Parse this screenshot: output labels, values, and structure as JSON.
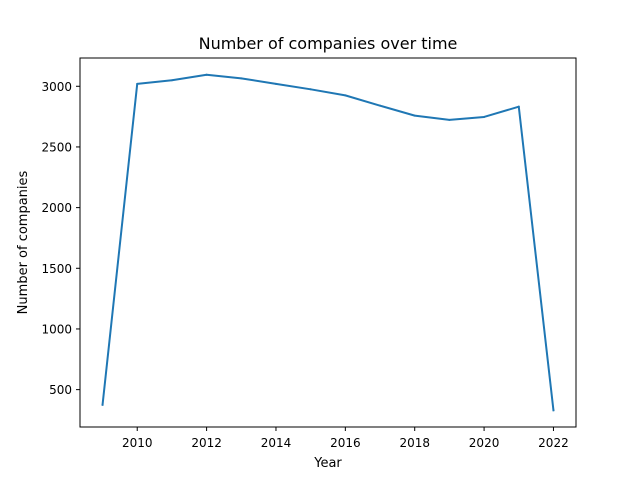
{
  "chart_data": {
    "type": "line",
    "title": "Number of companies over time",
    "xlabel": "Year",
    "ylabel": "Number of companies",
    "x": [
      2009,
      2010,
      2011,
      2012,
      2013,
      2014,
      2015,
      2016,
      2017,
      2018,
      2019,
      2020,
      2021,
      2022
    ],
    "series": [
      {
        "values": [
          375,
          3020,
          3050,
          3095,
          3065,
          3020,
          2975,
          2925,
          2840,
          2758,
          2723,
          2747,
          2832,
          330
        ],
        "color": "#1f77b4"
      }
    ],
    "xticks": [
      2010,
      2012,
      2014,
      2016,
      2018,
      2020,
      2022
    ],
    "yticks": [
      500,
      1000,
      1500,
      2000,
      2500,
      3000
    ],
    "xlim": [
      2008.35,
      2022.65
    ],
    "ylim": [
      192,
      3233
    ],
    "grid": false
  }
}
